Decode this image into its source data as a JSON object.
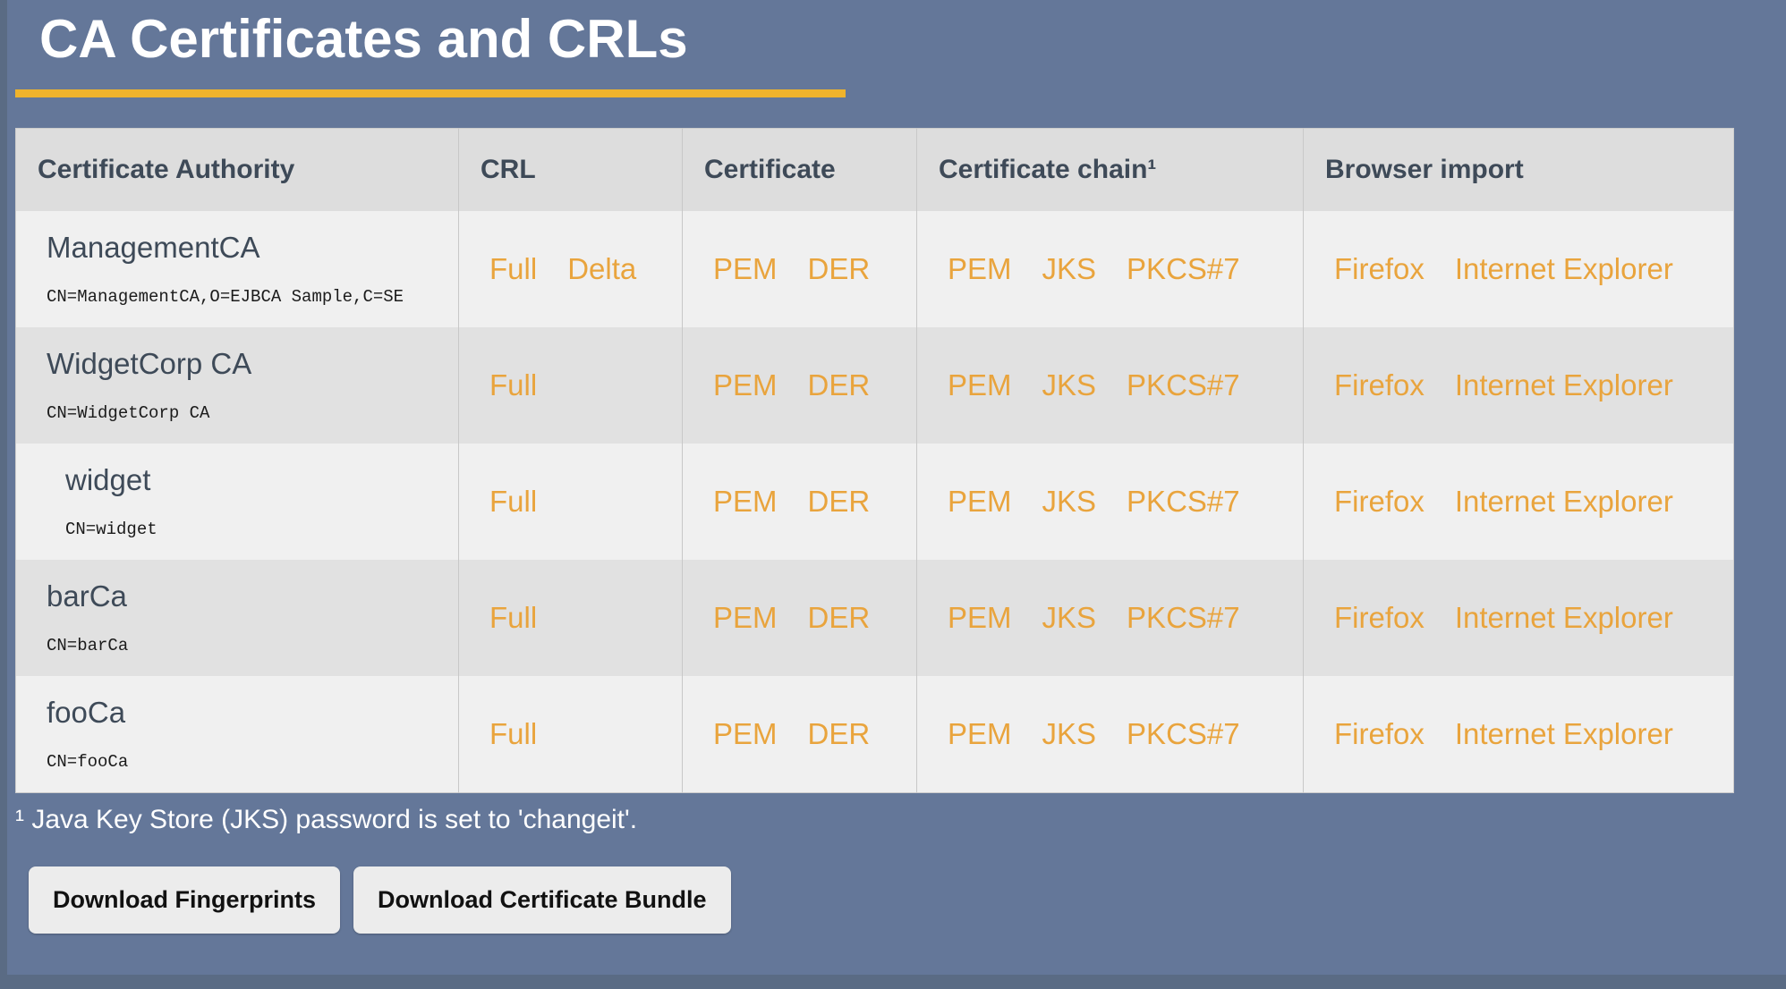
{
  "page": {
    "title": "CA Certificates and CRLs",
    "footnote": "¹ Java Key Store (JKS) password is set to 'changeit'.",
    "buttons": {
      "fingerprints": "Download Fingerprints",
      "bundle": "Download Certificate Bundle"
    }
  },
  "table": {
    "headers": [
      "Certificate Authority",
      "CRL",
      "Certificate",
      "Certificate chain¹",
      "Browser import"
    ],
    "rows": [
      {
        "name": "ManagementCA",
        "dn": "CN=ManagementCA,O=EJBCA Sample,C=SE",
        "indent": false,
        "crl": [
          "Full",
          "Delta"
        ],
        "certificate": [
          "PEM",
          "DER"
        ],
        "chain": [
          "PEM",
          "JKS",
          "PKCS#7"
        ],
        "browser": [
          "Firefox",
          "Internet Explorer"
        ]
      },
      {
        "name": "WidgetCorp CA",
        "dn": "CN=WidgetCorp CA",
        "indent": false,
        "crl": [
          "Full"
        ],
        "certificate": [
          "PEM",
          "DER"
        ],
        "chain": [
          "PEM",
          "JKS",
          "PKCS#7"
        ],
        "browser": [
          "Firefox",
          "Internet Explorer"
        ]
      },
      {
        "name": "widget",
        "dn": "CN=widget",
        "indent": true,
        "crl": [
          "Full"
        ],
        "certificate": [
          "PEM",
          "DER"
        ],
        "chain": [
          "PEM",
          "JKS",
          "PKCS#7"
        ],
        "browser": [
          "Firefox",
          "Internet Explorer"
        ]
      },
      {
        "name": "barCa",
        "dn": "CN=barCa",
        "indent": false,
        "crl": [
          "Full"
        ],
        "certificate": [
          "PEM",
          "DER"
        ],
        "chain": [
          "PEM",
          "JKS",
          "PKCS#7"
        ],
        "browser": [
          "Firefox",
          "Internet Explorer"
        ]
      },
      {
        "name": "fooCa",
        "dn": "CN=fooCa",
        "indent": false,
        "crl": [
          "Full"
        ],
        "certificate": [
          "PEM",
          "DER"
        ],
        "chain": [
          "PEM",
          "JKS",
          "PKCS#7"
        ],
        "browser": [
          "Firefox",
          "Internet Explorer"
        ]
      }
    ]
  },
  "colors": {
    "accent_orange": "#e9a43d",
    "rule_yellow": "#efb32c",
    "page_background": "#647799",
    "edge_background": "#5a6b84",
    "header_background": "#dddddd",
    "row_light": "#f0f0f0",
    "row_dark": "#e1e1e1",
    "heading_text": "#3e4a58"
  }
}
